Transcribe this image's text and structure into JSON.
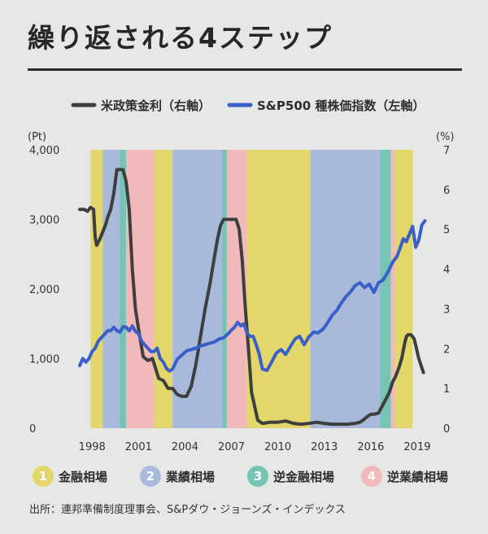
{
  "title": "繰り返される4ステップ",
  "source": "出所：連邦準備制度理事会、S&Pダウ・ジョーンズ・インデックス",
  "phases": [
    {
      "num": "1",
      "label": "金融相場",
      "color": "#e3d76b"
    },
    {
      "num": "2",
      "label": "業績相場",
      "color": "#a8b9db"
    },
    {
      "num": "3",
      "label": "逆金融相場",
      "color": "#76c4b6"
    },
    {
      "num": "4",
      "label": "逆業績相場",
      "color": "#f1b9ba"
    }
  ],
  "chart_data": {
    "type": "line",
    "legend": [
      {
        "label": "米政策金利（右軸）",
        "color": "#3c3f3d"
      },
      {
        "label": "S&P500 種株価指数（左軸）",
        "color": "#3a5fc8"
      }
    ],
    "left_axis": {
      "unit": "(Pt)",
      "min": 0,
      "max": 4000,
      "ticks": [
        "0",
        "1,000",
        "2,000",
        "3,000",
        "4,000"
      ]
    },
    "right_axis": {
      "unit": "(%)",
      "min": 0,
      "max": 7,
      "ticks": [
        "0",
        "1",
        "2",
        "3",
        "4",
        "5",
        "6",
        "7"
      ]
    },
    "x_axis": {
      "min": 1997.2,
      "max": 2020.0,
      "ticks": [
        "1998",
        "2001",
        "2004",
        "2007",
        "2010",
        "2013",
        "2016",
        "2019"
      ]
    },
    "phase_bands": [
      {
        "phase": 1,
        "from": 1997.9,
        "to": 1998.7
      },
      {
        "phase": 2,
        "from": 1998.7,
        "to": 1999.8
      },
      {
        "phase": 3,
        "from": 1999.8,
        "to": 2000.2
      },
      {
        "phase": 4,
        "from": 2000.2,
        "to": 2002.0
      },
      {
        "phase": 1,
        "from": 2002.0,
        "to": 2003.2
      },
      {
        "phase": 2,
        "from": 2003.2,
        "to": 2006.4
      },
      {
        "phase": 3,
        "from": 2006.4,
        "to": 2006.7
      },
      {
        "phase": 4,
        "from": 2006.7,
        "to": 2008.0
      },
      {
        "phase": 1,
        "from": 2008.0,
        "to": 2012.1
      },
      {
        "phase": 2,
        "from": 2012.1,
        "to": 2016.6
      },
      {
        "phase": 3,
        "from": 2016.6,
        "to": 2017.3
      },
      {
        "phase": 4,
        "from": 2017.3,
        "to": 2017.6
      },
      {
        "phase": 1,
        "from": 2017.6,
        "to": 2018.7
      }
    ],
    "series": [
      {
        "name": "米政策金利（右軸）",
        "axis": "right",
        "color": "#3c3f3d",
        "x": [
          1997.2,
          1997.5,
          1997.7,
          1997.9,
          1998.1,
          1998.2,
          1998.3,
          1998.5,
          1998.7,
          1998.9,
          1999.0,
          1999.2,
          1999.4,
          1999.6,
          1999.8,
          2000.0,
          2000.2,
          2000.4,
          2000.6,
          2000.8,
          2001.0,
          2001.3,
          2001.6,
          2001.9,
          2002.3,
          2002.6,
          2002.9,
          2003.2,
          2003.5,
          2003.8,
          2004.1,
          2004.4,
          2004.7,
          2005.0,
          2005.3,
          2005.6,
          2005.9,
          2006.1,
          2006.3,
          2006.5,
          2006.8,
          2007.1,
          2007.3,
          2007.5,
          2007.7,
          2007.9,
          2008.1,
          2008.3,
          2008.7,
          2009.0,
          2009.5,
          2010.0,
          2010.5,
          2011.0,
          2011.5,
          2012.0,
          2012.5,
          2013.0,
          2013.5,
          2014.0,
          2014.5,
          2015.0,
          2015.3,
          2015.5,
          2015.8,
          2016.0,
          2016.2,
          2016.5,
          2016.8,
          2017.0,
          2017.2,
          2017.4,
          2017.6,
          2017.8,
          2018.0,
          2018.2,
          2018.3,
          2018.4,
          2018.6,
          2018.8,
          2019.1,
          2019.4
        ],
        "values": [
          5.5,
          5.5,
          5.45,
          5.55,
          5.5,
          4.8,
          4.6,
          4.75,
          4.95,
          5.15,
          5.3,
          5.5,
          5.9,
          6.5,
          6.5,
          6.5,
          6.2,
          5.5,
          4.0,
          3.0,
          2.5,
          1.8,
          1.7,
          1.75,
          1.25,
          1.2,
          1.0,
          1.0,
          0.85,
          0.8,
          0.8,
          1.05,
          1.6,
          2.3,
          3.0,
          3.6,
          4.3,
          4.75,
          5.1,
          5.25,
          5.25,
          5.25,
          5.25,
          5.0,
          4.2,
          3.0,
          2.0,
          0.9,
          0.2,
          0.12,
          0.15,
          0.15,
          0.18,
          0.12,
          0.1,
          0.12,
          0.15,
          0.12,
          0.1,
          0.1,
          0.1,
          0.12,
          0.15,
          0.2,
          0.3,
          0.35,
          0.35,
          0.38,
          0.6,
          0.75,
          0.9,
          1.15,
          1.3,
          1.5,
          1.75,
          2.15,
          2.3,
          2.35,
          2.35,
          2.25,
          1.75,
          1.4
        ]
      },
      {
        "name": "S&P500 種株価指数（左軸）",
        "axis": "left",
        "color": "#3a5fc8",
        "x": [
          1997.2,
          1997.4,
          1997.6,
          1997.8,
          1998.0,
          1998.2,
          1998.4,
          1998.6,
          1998.8,
          1999.0,
          1999.2,
          1999.4,
          1999.6,
          1999.8,
          2000.0,
          2000.2,
          2000.4,
          2000.6,
          2000.8,
          2001.0,
          2001.2,
          2001.4,
          2001.6,
          2001.8,
          2002.0,
          2002.2,
          2002.4,
          2002.6,
          2002.8,
          2003.0,
          2003.2,
          2003.5,
          2003.8,
          2004.1,
          2004.4,
          2004.7,
          2005.0,
          2005.3,
          2005.6,
          2005.9,
          2006.2,
          2006.5,
          2006.8,
          2007.0,
          2007.2,
          2007.4,
          2007.6,
          2007.8,
          2008.0,
          2008.2,
          2008.4,
          2008.6,
          2008.8,
          2009.0,
          2009.3,
          2009.6,
          2009.9,
          2010.2,
          2010.5,
          2010.8,
          2011.1,
          2011.4,
          2011.7,
          2012.0,
          2012.3,
          2012.6,
          2012.9,
          2013.2,
          2013.5,
          2013.8,
          2014.1,
          2014.4,
          2014.7,
          2015.0,
          2015.3,
          2015.6,
          2015.9,
          2016.2,
          2016.5,
          2016.8,
          2017.1,
          2017.4,
          2017.7,
          2017.9,
          2018.1,
          2018.3,
          2018.5,
          2018.7,
          2018.9,
          2019.1,
          2019.3,
          2019.5
        ],
        "values": [
          900,
          1000,
          950,
          1000,
          1100,
          1150,
          1250,
          1300,
          1350,
          1400,
          1400,
          1450,
          1400,
          1380,
          1460,
          1450,
          1400,
          1470,
          1390,
          1360,
          1250,
          1200,
          1150,
          1100,
          1100,
          1150,
          1000,
          950,
          860,
          820,
          850,
          990,
          1050,
          1110,
          1130,
          1150,
          1180,
          1200,
          1220,
          1240,
          1280,
          1300,
          1360,
          1410,
          1450,
          1520,
          1470,
          1500,
          1370,
          1320,
          1320,
          1200,
          1060,
          850,
          830,
          950,
          1080,
          1130,
          1060,
          1170,
          1280,
          1320,
          1200,
          1310,
          1380,
          1370,
          1420,
          1510,
          1620,
          1690,
          1800,
          1890,
          1960,
          2050,
          2090,
          2020,
          2070,
          1950,
          2090,
          2130,
          2240,
          2380,
          2470,
          2590,
          2720,
          2680,
          2790,
          2900,
          2600,
          2700,
          2920,
          2980
        ]
      }
    ]
  }
}
